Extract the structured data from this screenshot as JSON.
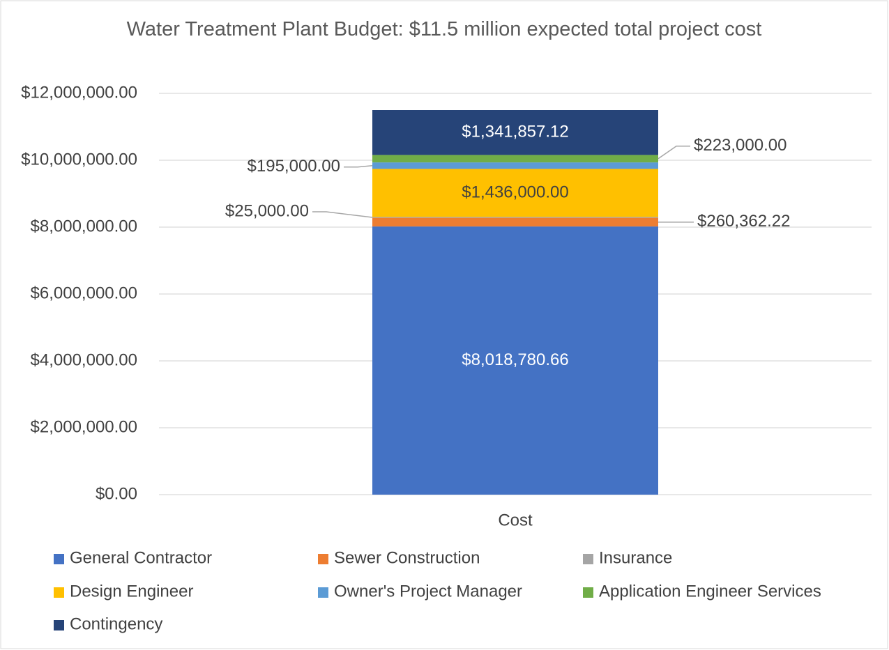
{
  "chart_data": {
    "type": "stacked_bar",
    "title": "Water Treatment Plant Budget: $11.5 million expected total project cost",
    "categories": [
      "Cost"
    ],
    "series": [
      {
        "name": "General Contractor",
        "color": "#4472c4",
        "values": [
          8018780.66
        ],
        "value_labels": [
          "$8,018,780.66"
        ]
      },
      {
        "name": "Sewer Construction",
        "color": "#ed7d31",
        "values": [
          260362.22
        ],
        "value_labels": [
          "$260,362.22"
        ]
      },
      {
        "name": "Insurance",
        "color": "#a5a5a5",
        "values": [
          25000
        ],
        "value_labels": [
          "$25,000.00"
        ]
      },
      {
        "name": "Design Engineer",
        "color": "#ffc000",
        "values": [
          1436000
        ],
        "value_labels": [
          "$1,436,000.00"
        ]
      },
      {
        "name": "Owner's Project Manager",
        "color": "#5b9bd5",
        "values": [
          195000
        ],
        "value_labels": [
          "$195,000.00"
        ]
      },
      {
        "name": "Application Engineer Services",
        "color": "#70ad47",
        "values": [
          223000
        ],
        "value_labels": [
          "$223,000.00"
        ]
      },
      {
        "name": "Contingency",
        "color": "#264478",
        "values": [
          1341857.12
        ],
        "value_labels": [
          "$1,341,857.12"
        ]
      }
    ],
    "ylim": [
      0,
      12000000
    ],
    "yticks": [
      {
        "value": 0,
        "label": "$0.00"
      },
      {
        "value": 2000000,
        "label": "$2,000,000.00"
      },
      {
        "value": 4000000,
        "label": "$4,000,000.00"
      },
      {
        "value": 6000000,
        "label": "$6,000,000.00"
      },
      {
        "value": 8000000,
        "label": "$8,000,000.00"
      },
      {
        "value": 10000000,
        "label": "$10,000,000.00"
      },
      {
        "value": 12000000,
        "label": "$12,000,000.00"
      }
    ],
    "grid": true,
    "legend": "bottom"
  }
}
